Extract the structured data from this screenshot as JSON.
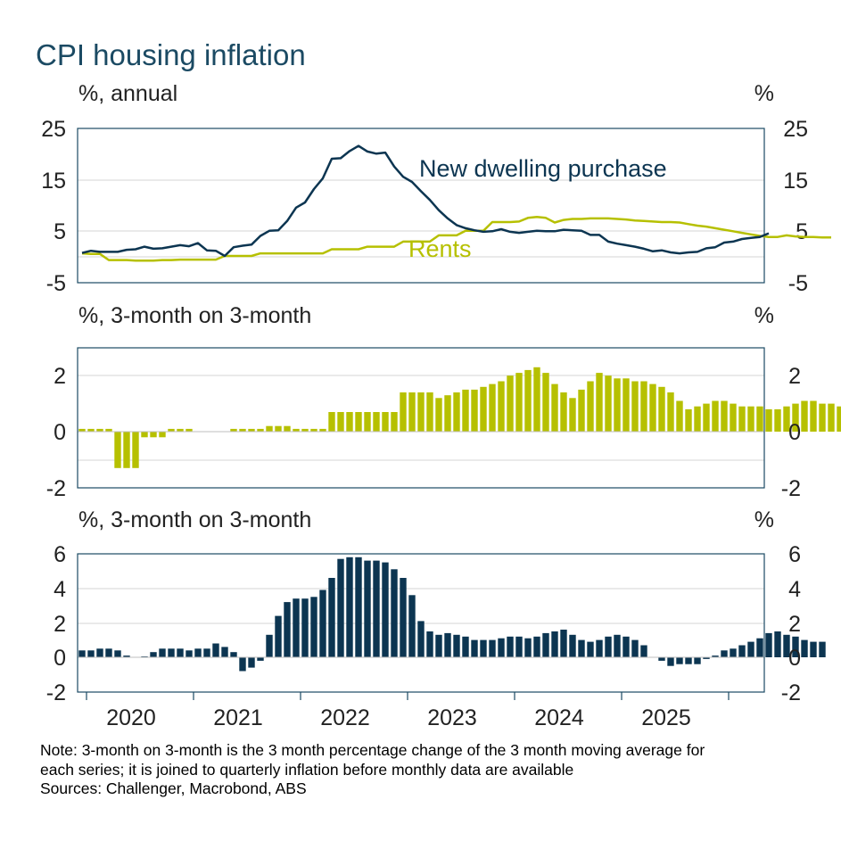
{
  "title": "CPI housing inflation",
  "colors": {
    "title": "#1b4a63",
    "new_dwelling": "#0c3551",
    "rents": "#b6c000",
    "axis": "#1b4a63",
    "grid": "#d6d6d6"
  },
  "panels": {
    "top": {
      "left_unit": "%, annual",
      "right_unit": "%",
      "ticks": [
        "25",
        "15",
        "5",
        "-5"
      ]
    },
    "middle": {
      "left_unit": "%, 3-month on 3-month",
      "right_unit": "%",
      "ticks": [
        "2",
        "0",
        "-2"
      ]
    },
    "bottom": {
      "left_unit": "%, 3-month on 3-month",
      "right_unit": "%",
      "ticks": [
        "6",
        "4",
        "2",
        "0",
        "-2"
      ]
    }
  },
  "x_axis": {
    "years": [
      "2020",
      "2021",
      "2022",
      "2023",
      "2024",
      "2025"
    ]
  },
  "notes": {
    "line1": "Note: 3-month on 3-month is the 3 month percentage change of the 3 month moving average for",
    "line2": "each series; it is joined to quarterly inflation before monthly data are available",
    "sources": "Sources: Challenger, Macrobond, ABS"
  },
  "chart_data": [
    {
      "type": "line",
      "title": "CPI housing inflation",
      "ylabel": "%, annual",
      "ylim": [
        -5,
        25
      ],
      "x_start": "2019-12",
      "frequency": "monthly",
      "series": [
        {
          "name": "New dwelling purchase",
          "values": [
            0.8,
            1.2,
            1.0,
            1.0,
            1.0,
            1.4,
            1.5,
            2.0,
            1.6,
            1.7,
            2.0,
            2.3,
            2.1,
            2.7,
            1.3,
            1.2,
            0.2,
            1.9,
            2.2,
            2.4,
            4.1,
            5.1,
            5.2,
            7.0,
            9.6,
            10.6,
            13.2,
            15.3,
            19.1,
            19.2,
            20.6,
            21.6,
            20.5,
            20.1,
            20.3,
            17.6,
            15.6,
            14.6,
            12.8,
            11.1,
            9.1,
            7.5,
            6.2,
            5.6,
            5.2,
            4.9,
            5.0,
            5.4,
            4.9,
            4.7,
            4.9,
            5.1,
            5.0,
            5.0,
            5.3,
            5.2,
            5.1,
            4.3,
            4.3,
            3.0,
            2.6,
            2.3,
            2.0,
            1.6,
            1.1,
            1.3,
            0.9,
            0.7,
            0.9,
            1.0,
            1.7,
            1.9,
            2.8,
            3.0,
            3.5,
            3.7,
            3.9,
            4.6
          ]
        },
        {
          "name": "Rents",
          "values": [
            0.7,
            0.6,
            0.6,
            -0.6,
            -0.6,
            -0.6,
            -0.7,
            -0.7,
            -0.7,
            -0.6,
            -0.6,
            -0.5,
            -0.5,
            -0.5,
            -0.5,
            -0.5,
            0.2,
            0.2,
            0.2,
            0.2,
            0.7,
            0.7,
            0.7,
            0.7,
            0.7,
            0.7,
            0.7,
            0.7,
            1.5,
            1.5,
            1.5,
            1.5,
            2.0,
            2.0,
            2.0,
            2.0,
            3.0,
            3.0,
            3.0,
            3.0,
            4.2,
            4.2,
            4.2,
            5.1,
            5.1,
            5.1,
            6.8,
            6.8,
            6.8,
            6.9,
            7.6,
            7.8,
            7.6,
            6.7,
            7.2,
            7.4,
            7.4,
            7.5,
            7.5,
            7.5,
            7.4,
            7.3,
            7.1,
            7.0,
            6.9,
            6.8,
            6.8,
            6.7,
            6.4,
            6.1,
            5.9,
            5.6,
            5.3,
            5.0,
            4.7,
            4.4,
            4.1,
            3.9,
            3.9,
            4.2,
            4.0,
            3.9,
            3.9,
            3.8,
            3.8
          ]
        }
      ]
    },
    {
      "type": "bar",
      "title": "",
      "ylabel": "%, 3-month on 3-month",
      "ylim": [
        -2,
        3
      ],
      "x_start": "2019-12",
      "frequency": "monthly",
      "series": [
        {
          "name": "Rents",
          "values": [
            0.1,
            0.1,
            0.1,
            0.1,
            -1.3,
            -1.3,
            -1.3,
            -0.2,
            -0.2,
            -0.2,
            0.1,
            0.1,
            0.1,
            0,
            0,
            0,
            0,
            0.1,
            0.1,
            0.1,
            0.1,
            0.2,
            0.2,
            0.2,
            0.1,
            0.1,
            0.1,
            0.1,
            0.7,
            0.7,
            0.7,
            0.7,
            0.7,
            0.7,
            0.7,
            0.7,
            1.4,
            1.4,
            1.4,
            1.4,
            1.2,
            1.3,
            1.4,
            1.5,
            1.5,
            1.6,
            1.7,
            1.8,
            2.0,
            2.1,
            2.2,
            2.3,
            2.1,
            1.7,
            1.4,
            1.2,
            1.5,
            1.8,
            2.1,
            2.0,
            1.9,
            1.9,
            1.8,
            1.8,
            1.7,
            1.6,
            1.4,
            1.1,
            0.8,
            0.9,
            1.0,
            1.1,
            1.1,
            1.0,
            0.9,
            0.9,
            0.9,
            0.8,
            0.8,
            0.9,
            1.0,
            1.1,
            1.1,
            1.0,
            1.0,
            0.9,
            0.9,
            0.9
          ]
        }
      ]
    },
    {
      "type": "bar",
      "title": "",
      "ylabel": "%, 3-month on 3-month",
      "ylim": [
        -2,
        6
      ],
      "x_start": "2019-12",
      "frequency": "monthly",
      "series": [
        {
          "name": "New dwelling purchase",
          "values": [
            0.4,
            0.4,
            0.5,
            0.5,
            0.4,
            0.1,
            0,
            0.05,
            0.3,
            0.5,
            0.5,
            0.5,
            0.4,
            0.5,
            0.5,
            0.8,
            0.6,
            0.3,
            -0.8,
            -0.6,
            -0.2,
            1.3,
            2.4,
            3.2,
            3.4,
            3.4,
            3.5,
            3.9,
            4.6,
            5.7,
            5.8,
            5.8,
            5.6,
            5.6,
            5.5,
            5.1,
            4.6,
            3.6,
            2.1,
            1.5,
            1.3,
            1.4,
            1.3,
            1.2,
            1.0,
            1.0,
            1.0,
            1.1,
            1.2,
            1.2,
            1.1,
            1.2,
            1.4,
            1.5,
            1.6,
            1.3,
            1.0,
            0.9,
            1.0,
            1.2,
            1.3,
            1.2,
            1.0,
            0.7,
            0,
            -0.2,
            -0.5,
            -0.4,
            -0.4,
            -0.4,
            -0.1,
            0.1,
            0.4,
            0.5,
            0.7,
            0.9,
            1.1,
            1.4,
            1.5,
            1.3,
            1.2,
            1.0,
            0.9,
            0.9
          ]
        }
      ]
    }
  ]
}
